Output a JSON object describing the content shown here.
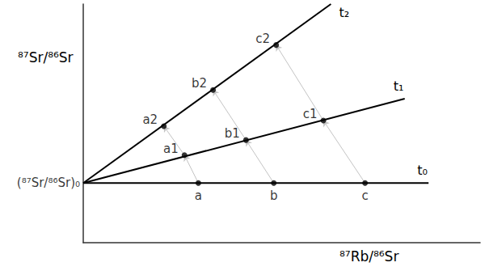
{
  "chart_data": {
    "type": "line",
    "x_label": "⁸⁷Rb/⁸⁶Sr",
    "y_label": "⁸⁷Sr/⁸⁶Sr",
    "xlim": [
      0,
      10
    ],
    "ylim": [
      0,
      6
    ],
    "tick_labels": false,
    "grid": false,
    "annotations": [
      {
        "text": "(⁸⁷Sr/⁸⁶Sr)₀",
        "x": 0,
        "y": 1.5
      }
    ],
    "series": [
      {
        "name": "t₀",
        "type": "line",
        "color": "#000000",
        "x": [
          0,
          8.7
        ],
        "values": [
          1.5,
          1.5
        ]
      },
      {
        "name": "t₁",
        "type": "line",
        "color": "#000000",
        "x": [
          0,
          8.1
        ],
        "values": [
          1.5,
          3.62
        ]
      },
      {
        "name": "t₂",
        "type": "line",
        "color": "#000000",
        "x": [
          0,
          6.24
        ],
        "values": [
          1.5,
          6.0
        ]
      },
      {
        "type": "scatter",
        "color": "#000000",
        "x": [
          2.9,
          4.8,
          7.1
        ],
        "values": [
          1.5,
          1.5,
          1.5
        ],
        "labels": [
          "a",
          "b",
          "c"
        ]
      },
      {
        "type": "scatter",
        "color": "#000000",
        "x": [
          2.55,
          4.1,
          6.05
        ],
        "values": [
          2.2,
          2.58,
          3.07
        ],
        "labels": [
          "a1",
          "b1",
          "c1"
        ]
      },
      {
        "type": "scatter",
        "color": "#000000",
        "x": [
          2.03,
          3.27,
          4.86
        ],
        "values": [
          2.93,
          3.84,
          4.97
        ],
        "labels": [
          "a2",
          "b2",
          "c2"
        ]
      }
    ]
  }
}
